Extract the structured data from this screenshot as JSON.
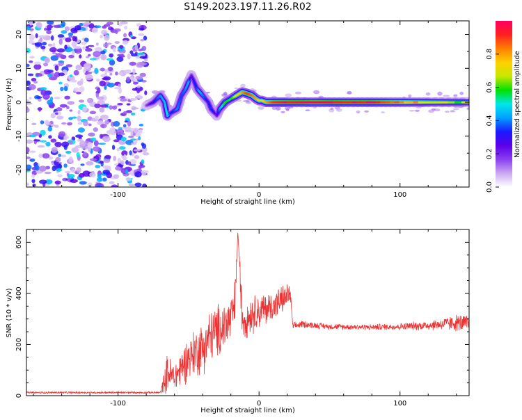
{
  "title": "S149.2023.197.11.26.R02",
  "colors": {
    "snr_line": "#ee3333",
    "colormap": [
      "#ffffff",
      "#c9a8f0",
      "#8a3ff0",
      "#5b00e8",
      "#1a1aff",
      "#00a0ff",
      "#00e8e8",
      "#00e000",
      "#c8e800",
      "#ffd000",
      "#ff8000",
      "#ff2020",
      "#ff0060"
    ]
  },
  "chart_data": [
    {
      "type": "heatmap",
      "xlabel": "Height of straight line (km)",
      "ylabel": "Frequency (Hz)",
      "xlim": [
        -165,
        149
      ],
      "ylim": [
        -25,
        24
      ],
      "xticks": [
        -100,
        0,
        100
      ],
      "yticks": [
        -20,
        -10,
        0,
        10,
        20
      ],
      "noise_region": [
        -165,
        -80
      ],
      "ridge": {
        "x": [
          -80,
          -75,
          -70,
          -67,
          -65,
          -62,
          -58,
          -55,
          -52,
          -50,
          -48,
          -46,
          -44,
          -42,
          -40,
          -38,
          -36,
          -34,
          -32,
          -30,
          -28,
          -26,
          -24,
          -20,
          -16,
          -12,
          -8,
          -5,
          -2,
          0,
          2,
          5,
          10,
          20,
          40,
          60,
          80,
          100,
          120,
          149
        ],
        "freq": [
          -1,
          0,
          2,
          0,
          -4,
          -3,
          -2,
          2,
          4,
          6,
          8,
          6,
          4,
          3,
          2,
          1,
          0,
          -2,
          -3,
          -4,
          -2,
          -1,
          0,
          1,
          2,
          3,
          2.5,
          2,
          1,
          0.5,
          0.5,
          0,
          0,
          0,
          0,
          0,
          0,
          0,
          0,
          0
        ],
        "amp": [
          0.15,
          0.3,
          0.4,
          0.45,
          0.5,
          0.3,
          0.4,
          0.35,
          0.4,
          0.45,
          0.2,
          0.3,
          0.35,
          0.45,
          0.4,
          0.35,
          0.3,
          0.35,
          0.3,
          0.2,
          0.4,
          0.5,
          0.6,
          0.55,
          0.7,
          0.8,
          0.9,
          0.85,
          0.8,
          0.75,
          0.7,
          0.8,
          0.9,
          0.95,
          1.0,
          0.95,
          0.95,
          0.85,
          0.7,
          0.6
        ]
      }
    },
    {
      "type": "line",
      "xlabel": "Height of straight line (km)",
      "ylabel": "SNR (10 * v/v)",
      "xlim": [
        -165,
        149
      ],
      "ylim": [
        0,
        650
      ],
      "xticks": [
        -100,
        0,
        100
      ],
      "yticks": [
        0,
        200,
        400,
        600
      ],
      "series": [
        {
          "x": [
            -165,
            -70,
            -65,
            -60,
            -55,
            -50,
            -45,
            -40,
            -35,
            -30,
            -25,
            -20,
            -17,
            -15,
            -12,
            -10,
            -5,
            0,
            5,
            10,
            15,
            20,
            22,
            24,
            30,
            50,
            80,
            100,
            120,
            130,
            140,
            149
          ],
          "y": [
            12,
            12,
            90,
            70,
            110,
            150,
            170,
            190,
            230,
            250,
            270,
            300,
            360,
            630,
            310,
            300,
            320,
            330,
            340,
            350,
            370,
            390,
            400,
            270,
            280,
            270,
            268,
            270,
            275,
            280,
            285,
            280
          ],
          "spread": [
            4,
            4,
            80,
            60,
            80,
            90,
            100,
            110,
            110,
            110,
            110,
            100,
            100,
            40,
            90,
            80,
            80,
            70,
            70,
            60,
            60,
            50,
            40,
            15,
            15,
            12,
            12,
            15,
            20,
            25,
            35,
            40
          ]
        }
      ]
    },
    {
      "type": "colorbar",
      "label": "Normalized spectral amplitude",
      "ticks": [
        "0.0",
        "0.2",
        "0.4",
        "0.6",
        "0.8"
      ],
      "tick_values": [
        0.0,
        0.2,
        0.4,
        0.6,
        0.8
      ],
      "range": [
        0,
        1
      ]
    }
  ]
}
